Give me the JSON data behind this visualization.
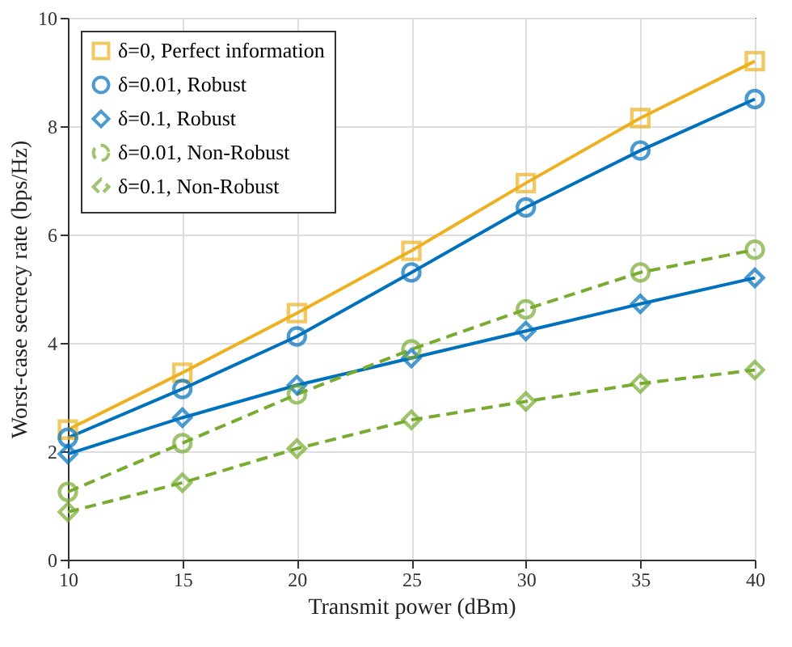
{
  "chart_data": {
    "type": "line",
    "xlabel": "Transmit power (dBm)",
    "ylabel": "Worst-case secrecy rate  (bps/Hz)",
    "x": [
      10,
      15,
      20,
      25,
      30,
      35,
      40
    ],
    "series": [
      {
        "name": "δ=0, Perfect information",
        "color": "#edb120",
        "marker": "square",
        "line_style": "solid",
        "values": [
          2.4,
          3.45,
          4.55,
          5.7,
          6.95,
          8.15,
          9.2
        ]
      },
      {
        "name": "δ=0.01, Robust",
        "color": "#0072bd",
        "marker": "circle",
        "line_style": "solid",
        "values": [
          2.25,
          3.15,
          4.12,
          5.3,
          6.5,
          7.55,
          8.5
        ]
      },
      {
        "name": "δ=0.1, Robust",
        "color": "#0072bd",
        "marker": "diamond",
        "line_style": "solid",
        "values": [
          1.95,
          2.62,
          3.22,
          3.72,
          4.22,
          4.72,
          5.2
        ]
      },
      {
        "name": "δ=0.01, Non-Robust",
        "color": "#77ac30",
        "marker": "circle",
        "line_style": "dashed",
        "values": [
          1.25,
          2.15,
          3.05,
          3.88,
          4.62,
          5.3,
          5.72
        ]
      },
      {
        "name": "δ=0.1, Non-Robust",
        "color": "#77ac30",
        "marker": "diamond",
        "line_style": "dashed",
        "values": [
          0.88,
          1.42,
          2.05,
          2.58,
          2.92,
          3.25,
          3.5
        ]
      }
    ],
    "xlim": [
      10,
      40
    ],
    "xticks": [
      10,
      15,
      20,
      25,
      30,
      35,
      40
    ],
    "ylim": [
      0,
      10
    ],
    "yticks": [
      0,
      2,
      4,
      6,
      8,
      10
    ],
    "grid": true,
    "legend": "top left"
  }
}
